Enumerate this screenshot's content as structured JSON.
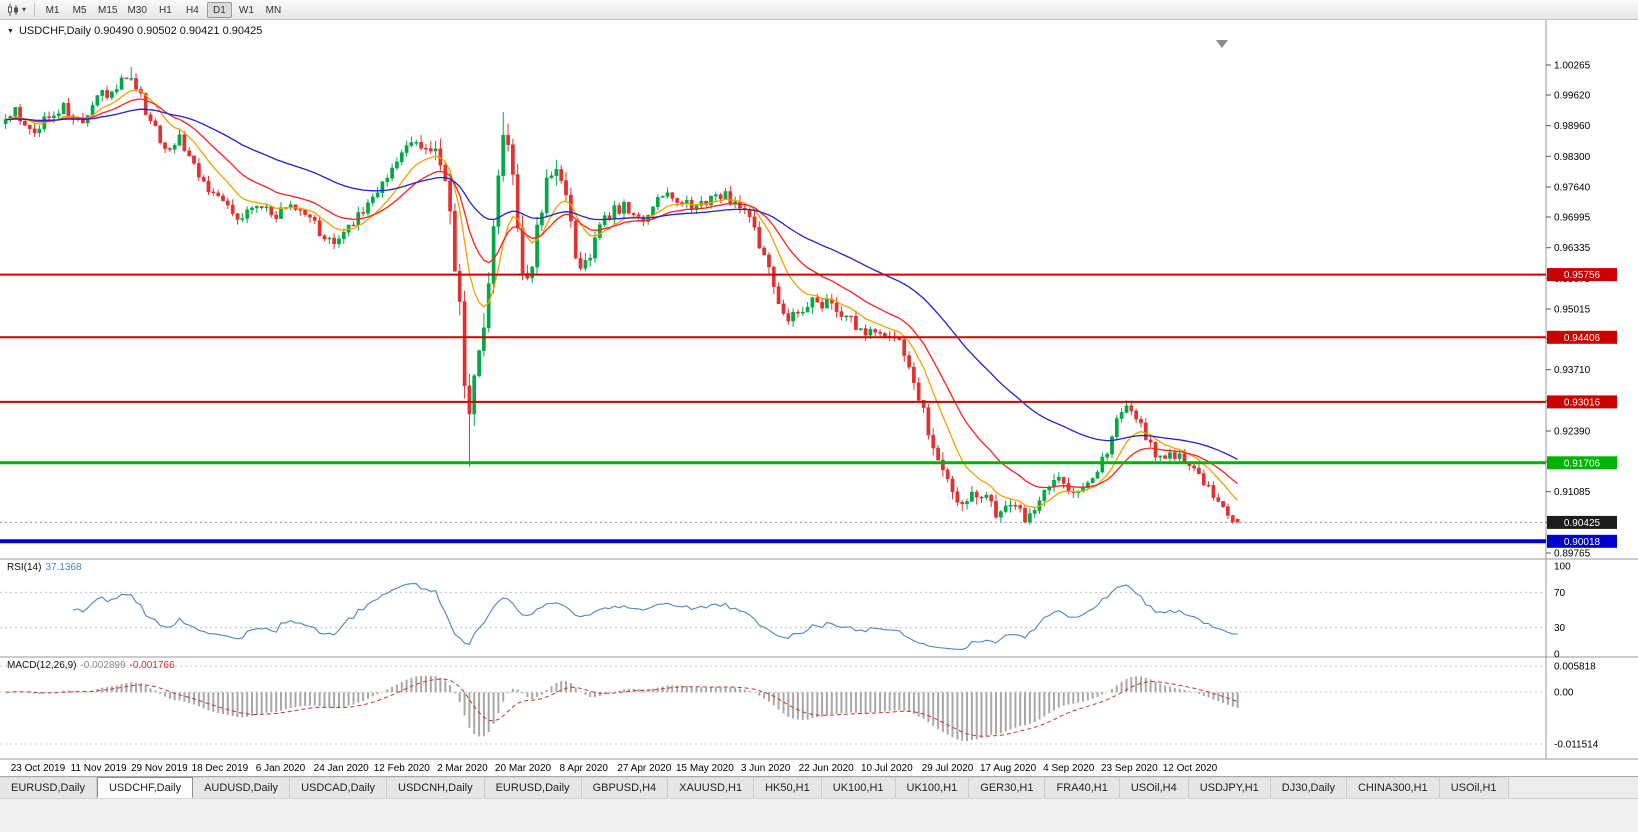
{
  "toolbar": {
    "chart_icon": "candlestick-chart-icon",
    "timeframes": [
      "M1",
      "M5",
      "M15",
      "M30",
      "H1",
      "H4",
      "D1",
      "W1",
      "MN"
    ],
    "active_timeframe": "D1"
  },
  "chart": {
    "title_text": "USDCHF,Daily  0.90490 0.90502 0.90421 0.90425"
  },
  "indicators": {
    "rsi": {
      "name": "RSI(14)",
      "value": "37.1368",
      "color": "#4a86c8",
      "scale": [
        {
          "label": "100",
          "v": 100
        },
        {
          "label": "70",
          "v": 70
        },
        {
          "label": "30",
          "v": 30
        },
        {
          "label": "0",
          "v": 0
        }
      ],
      "level_lines": [
        70,
        30
      ]
    },
    "macd": {
      "name": "MACD(12,26,9)",
      "value_main": "-0.002899",
      "value_signal": "-0.001766",
      "hist_color": "#a8a8a8",
      "signal_color": "#d03030",
      "scale": [
        {
          "label": "0.005818",
          "v": 0.005818
        },
        {
          "label": "0.00",
          "v": 0
        },
        {
          "label": "-0.011514",
          "v": -0.011514
        }
      ]
    }
  },
  "chart_data": {
    "type": "candlestick",
    "symbol": "USDCHF",
    "period": "Daily",
    "bars_count": 256,
    "last_bar": {
      "open": 0.9049,
      "high": 0.90502,
      "low": 0.90421,
      "close": 0.90425
    },
    "current_price": {
      "label": "0.90425",
      "value": 0.90425,
      "box_color": "#1c1c1c"
    },
    "up_color": "#00a846",
    "down_color": "#e23131",
    "y_ticks": [
      {
        "label": "1.00265",
        "v": 1.00265
      },
      {
        "label": "0.99620",
        "v": 0.9962
      },
      {
        "label": "0.98960",
        "v": 0.9896
      },
      {
        "label": "0.98300",
        "v": 0.983
      },
      {
        "label": "0.97640",
        "v": 0.9764
      },
      {
        "label": "0.96995",
        "v": 0.96995
      },
      {
        "label": "0.96335",
        "v": 0.96335
      },
      {
        "label": "0.95675",
        "v": 0.95675
      },
      {
        "label": "0.95015",
        "v": 0.95015
      },
      {
        "label": "0.94370",
        "v": 0.9437
      },
      {
        "label": "0.93710",
        "v": 0.9371
      },
      {
        "label": "0.93050",
        "v": 0.9305
      },
      {
        "label": "0.92390",
        "v": 0.9239
      },
      {
        "label": "0.91745",
        "v": 0.91745
      },
      {
        "label": "0.91085",
        "v": 0.91085
      },
      {
        "label": "0.90425",
        "v": 0.90425
      },
      {
        "label": "0.89765",
        "v": 0.89765
      }
    ],
    "x_labels": [
      "23 Oct 2019",
      "11 Nov 2019",
      "29 Nov 2019",
      "18 Dec 2019",
      "6 Jan 2020",
      "24 Jan 2020",
      "12 Feb 2020",
      "2 Mar 2020",
      "20 Mar 2020",
      "8 Apr 2020",
      "27 Apr 2020",
      "15 May 2020",
      "3 Jun 2020",
      "22 Jun 2020",
      "10 Jul 2020",
      "29 Jul 2020",
      "17 Aug 2020",
      "4 Sep 2020",
      "23 Sep 2020",
      "12 Oct 2020"
    ],
    "hlines": [
      {
        "label": "0.95756",
        "price": 0.95756,
        "color": "#cc0000",
        "width": 2,
        "kind": "resistance"
      },
      {
        "label": "0.94406",
        "price": 0.94406,
        "color": "#cc0000",
        "width": 2,
        "kind": "resistance"
      },
      {
        "label": "0.93016",
        "price": 0.93016,
        "color": "#cc0000",
        "width": 2,
        "kind": "resistance"
      },
      {
        "label": "0.91706",
        "price": 0.91706,
        "color": "#00b300",
        "width": 3,
        "kind": "support"
      },
      {
        "label": "0.90018",
        "price": 0.90018,
        "color": "#0000cc",
        "width": 4,
        "kind": "support"
      }
    ],
    "moving_averages": [
      {
        "period": 10,
        "color": "#f5a000"
      },
      {
        "period": 21,
        "color": "#ff2020"
      },
      {
        "period": 55,
        "color": "#2222cc"
      }
    ],
    "price_path": [
      [
        0.0,
        0.99
      ],
      [
        0.008,
        0.9925
      ],
      [
        0.016,
        0.989
      ],
      [
        0.024,
        0.987
      ],
      [
        0.032,
        0.991
      ],
      [
        0.04,
        0.993
      ],
      [
        0.049,
        0.9935
      ],
      [
        0.057,
        0.9905
      ],
      [
        0.065,
        0.9915
      ],
      [
        0.073,
        0.9955
      ],
      [
        0.081,
        0.9965
      ],
      [
        0.093,
        0.999
      ],
      [
        0.101,
        1.0015
      ],
      [
        0.105,
        0.999
      ],
      [
        0.113,
        0.993
      ],
      [
        0.122,
        0.99
      ],
      [
        0.13,
        0.983
      ],
      [
        0.138,
        0.9855
      ],
      [
        0.142,
        0.987
      ],
      [
        0.15,
        0.982
      ],
      [
        0.158,
        0.979
      ],
      [
        0.166,
        0.976
      ],
      [
        0.174,
        0.974
      ],
      [
        0.182,
        0.9715
      ],
      [
        0.19,
        0.9695
      ],
      [
        0.198,
        0.972
      ],
      [
        0.206,
        0.973
      ],
      [
        0.214,
        0.9705
      ],
      [
        0.219,
        0.97
      ],
      [
        0.227,
        0.9715
      ],
      [
        0.235,
        0.9725
      ],
      [
        0.243,
        0.97
      ],
      [
        0.251,
        0.968
      ],
      [
        0.259,
        0.9655
      ],
      [
        0.267,
        0.964
      ],
      [
        0.275,
        0.9665
      ],
      [
        0.283,
        0.969
      ],
      [
        0.291,
        0.972
      ],
      [
        0.3,
        0.9745
      ],
      [
        0.308,
        0.9775
      ],
      [
        0.316,
        0.9805
      ],
      [
        0.324,
        0.984
      ],
      [
        0.332,
        0.9865
      ],
      [
        0.34,
        0.9855
      ],
      [
        0.348,
        0.983
      ],
      [
        0.356,
        0.978
      ],
      [
        0.364,
        0.962
      ],
      [
        0.369,
        0.948
      ],
      [
        0.373,
        0.933
      ],
      [
        0.377,
        0.929
      ],
      [
        0.381,
        0.936
      ],
      [
        0.385,
        0.942
      ],
      [
        0.389,
        0.949
      ],
      [
        0.393,
        0.958
      ],
      [
        0.397,
        0.969
      ],
      [
        0.401,
        0.98
      ],
      [
        0.405,
        0.992
      ],
      [
        0.409,
        0.986
      ],
      [
        0.413,
        0.975
      ],
      [
        0.417,
        0.964
      ],
      [
        0.421,
        0.956
      ],
      [
        0.425,
        0.955
      ],
      [
        0.429,
        0.963
      ],
      [
        0.433,
        0.97
      ],
      [
        0.437,
        0.975
      ],
      [
        0.443,
        0.979
      ],
      [
        0.449,
        0.98
      ],
      [
        0.455,
        0.974
      ],
      [
        0.461,
        0.964
      ],
      [
        0.467,
        0.958
      ],
      [
        0.473,
        0.96
      ],
      [
        0.479,
        0.965
      ],
      [
        0.487,
        0.97
      ],
      [
        0.495,
        0.9715
      ],
      [
        0.503,
        0.972
      ],
      [
        0.511,
        0.97
      ],
      [
        0.519,
        0.968
      ],
      [
        0.527,
        0.973
      ],
      [
        0.535,
        0.9755
      ],
      [
        0.543,
        0.9745
      ],
      [
        0.551,
        0.973
      ],
      [
        0.559,
        0.972
      ],
      [
        0.567,
        0.9735
      ],
      [
        0.575,
        0.9745
      ],
      [
        0.583,
        0.975
      ],
      [
        0.591,
        0.9735
      ],
      [
        0.599,
        0.972
      ],
      [
        0.607,
        0.968
      ],
      [
        0.615,
        0.962
      ],
      [
        0.623,
        0.955
      ],
      [
        0.631,
        0.95
      ],
      [
        0.639,
        0.948
      ],
      [
        0.647,
        0.949
      ],
      [
        0.655,
        0.952
      ],
      [
        0.663,
        0.9515
      ],
      [
        0.671,
        0.9505
      ],
      [
        0.679,
        0.949
      ],
      [
        0.687,
        0.9475
      ],
      [
        0.695,
        0.946
      ],
      [
        0.703,
        0.9445
      ],
      [
        0.711,
        0.944
      ],
      [
        0.719,
        0.945
      ],
      [
        0.727,
        0.9425
      ],
      [
        0.735,
        0.938
      ],
      [
        0.743,
        0.93
      ],
      [
        0.751,
        0.922
      ],
      [
        0.757,
        0.918
      ],
      [
        0.765,
        0.913
      ],
      [
        0.773,
        0.91
      ],
      [
        0.781,
        0.909
      ],
      [
        0.789,
        0.9115
      ],
      [
        0.797,
        0.9085
      ],
      [
        0.805,
        0.906
      ],
      [
        0.813,
        0.9085
      ],
      [
        0.821,
        0.907
      ],
      [
        0.829,
        0.905
      ],
      [
        0.837,
        0.908
      ],
      [
        0.845,
        0.912
      ],
      [
        0.853,
        0.9135
      ],
      [
        0.861,
        0.912
      ],
      [
        0.869,
        0.911
      ],
      [
        0.877,
        0.9125
      ],
      [
        0.885,
        0.9155
      ],
      [
        0.893,
        0.918
      ],
      [
        0.901,
        0.925
      ],
      [
        0.907,
        0.9295
      ],
      [
        0.911,
        0.93
      ],
      [
        0.919,
        0.926
      ],
      [
        0.927,
        0.922
      ],
      [
        0.935,
        0.9185
      ],
      [
        0.943,
        0.919
      ],
      [
        0.951,
        0.9185
      ],
      [
        0.959,
        0.917
      ],
      [
        0.967,
        0.915
      ],
      [
        0.975,
        0.912
      ],
      [
        0.983,
        0.9085
      ],
      [
        0.991,
        0.906
      ],
      [
        1.0,
        0.9043
      ]
    ],
    "volatility_path": [
      [
        0.0,
        1.0
      ],
      [
        0.33,
        1.0
      ],
      [
        0.36,
        2.4
      ],
      [
        0.42,
        2.6
      ],
      [
        0.46,
        1.4
      ],
      [
        0.55,
        0.9
      ],
      [
        0.62,
        1.3
      ],
      [
        0.66,
        1.2
      ],
      [
        0.72,
        1.0
      ],
      [
        0.76,
        1.5
      ],
      [
        0.81,
        1.2
      ],
      [
        0.9,
        1.0
      ],
      [
        1.0,
        0.7
      ]
    ],
    "wick_events": [
      {
        "t": 0.101,
        "high_ext": 0.002
      },
      {
        "t": 0.377,
        "low_ext": 0.009
      },
      {
        "t": 0.405,
        "high_ext": 0.003
      }
    ]
  },
  "tabs": {
    "active_index": 1,
    "items": [
      {
        "label": "EURUSD,Daily"
      },
      {
        "label": "USDCHF,Daily"
      },
      {
        "label": "AUDUSD,Daily"
      },
      {
        "label": "USDCAD,Daily"
      },
      {
        "label": "USDCNH,Daily"
      },
      {
        "label": "EURUSD,Daily"
      },
      {
        "label": "GBPUSD,H4"
      },
      {
        "label": "XAUUSD,H1"
      },
      {
        "label": "HK50,H1"
      },
      {
        "label": "UK100,H1"
      },
      {
        "label": "UK100,H1"
      },
      {
        "label": "GER30,H1"
      },
      {
        "label": "FRA40,H1"
      },
      {
        "label": "USOil,H4"
      },
      {
        "label": "USDJPY,H1"
      },
      {
        "label": "DJ30,Daily"
      },
      {
        "label": "CHINA300,H1"
      },
      {
        "label": "USOil,H1"
      }
    ]
  }
}
